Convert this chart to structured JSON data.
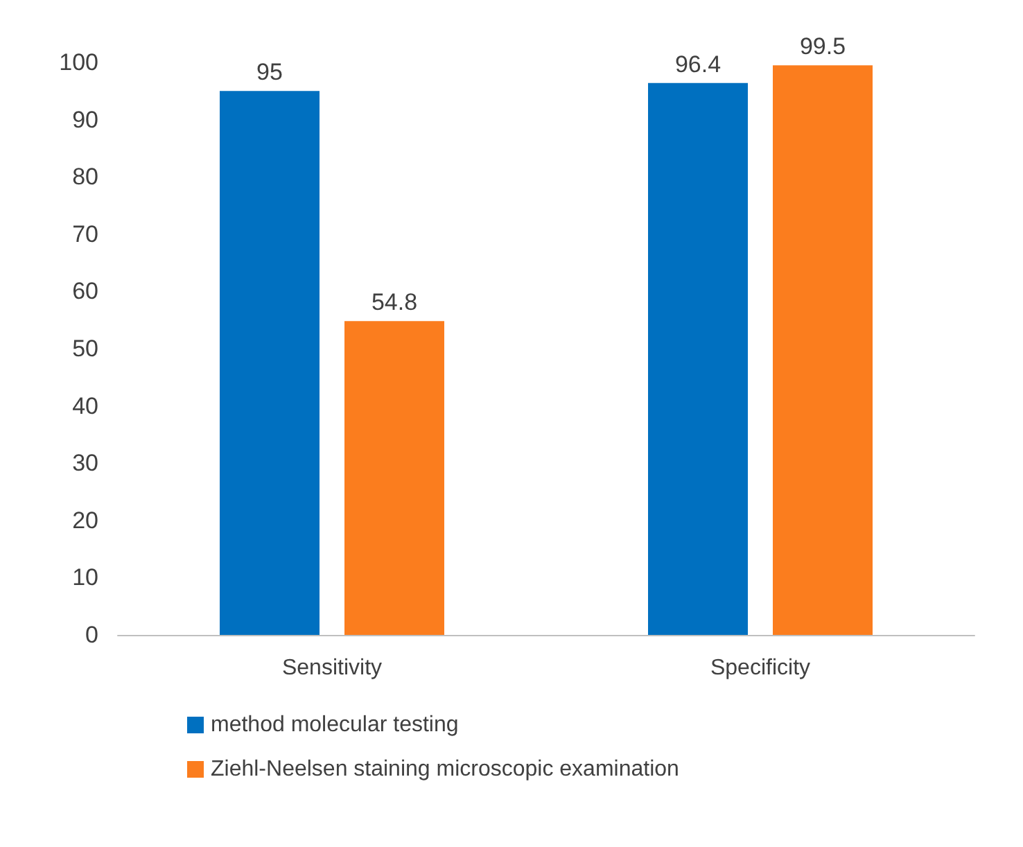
{
  "chart_data": {
    "type": "bar",
    "categories": [
      "Sensitivity",
      "Specificity"
    ],
    "series": [
      {
        "name": "method molecular testing",
        "color": "#0070c0",
        "values": [
          95,
          96.4
        ]
      },
      {
        "name": "Ziehl-Neelsen staining microscopic examination",
        "color": "#fb7d1e",
        "values": [
          54.8,
          99.5
        ]
      }
    ],
    "ylim": [
      0,
      100
    ],
    "yticks": [
      0,
      10,
      20,
      30,
      40,
      50,
      60,
      70,
      80,
      90,
      100
    ],
    "data_labels": true,
    "legend": "bottom",
    "grid": false
  }
}
